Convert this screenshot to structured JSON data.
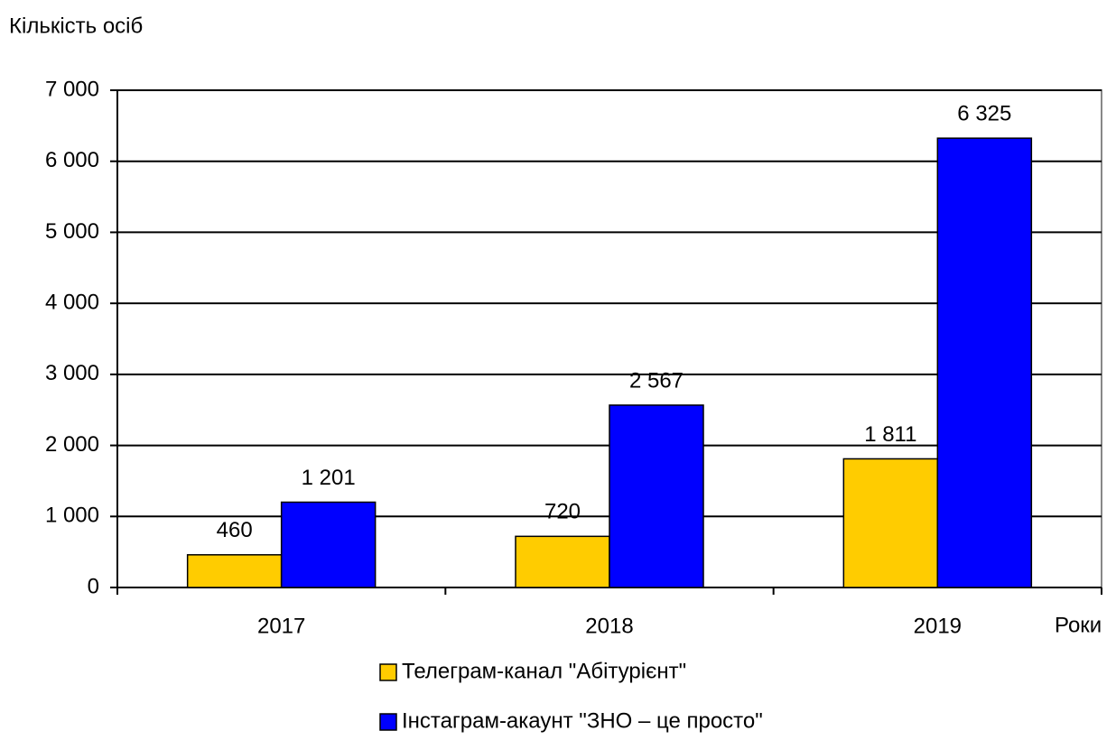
{
  "chart_data": {
    "type": "bar",
    "y_label": "Кількість осіб",
    "x_label": "Роки",
    "categories": [
      "2017",
      "2018",
      "2019"
    ],
    "series": [
      {
        "name": "Телеграм-канал \"Абітурієнт\"",
        "color": "#ffcc00",
        "values": [
          460,
          720,
          1811
        ],
        "value_labels": [
          "460",
          "720",
          "1 811"
        ]
      },
      {
        "name": "Інстаграм-акаунт \"ЗНО – це просто\"",
        "color": "#0000ff",
        "values": [
          1201,
          2567,
          6325
        ],
        "value_labels": [
          "1 201",
          "2 567",
          "6 325"
        ]
      }
    ],
    "ylim": [
      0,
      7000
    ],
    "yticks": [
      0,
      {
        "value": 1000,
        "label": "1 000"
      },
      {
        "value": 2000,
        "label": "2 000"
      },
      {
        "value": 3000,
        "label": "3 000"
      },
      {
        "value": 4000,
        "label": "4 000"
      },
      {
        "value": 5000,
        "label": "5 000"
      },
      {
        "value": 6000,
        "label": "6 000"
      },
      {
        "value": 7000,
        "label": "7 000"
      }
    ],
    "grid": true
  }
}
